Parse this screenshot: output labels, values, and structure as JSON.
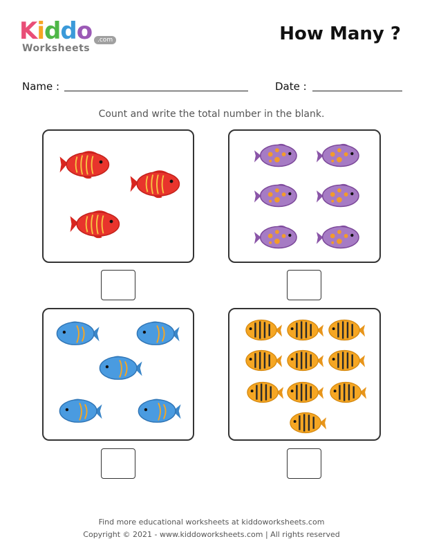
{
  "logo": {
    "letters": [
      "K",
      "i",
      "d",
      "d",
      "o"
    ],
    "worksheets": "Worksheets",
    "com": ".com"
  },
  "title": "How Many ?",
  "fields": {
    "name_label": "Name :",
    "date_label": "Date :"
  },
  "instruction": "Count and write the total number in the blank.",
  "panels": [
    {
      "fish_kind": "red-fish-icon",
      "color": "#e8342c"
    },
    {
      "fish_kind": "purple-fish-icon",
      "color": "#9b6bb5"
    },
    {
      "fish_kind": "blue-fish-icon",
      "color": "#3e8fd6"
    },
    {
      "fish_kind": "orange-striped-fish-icon",
      "color": "#f5a623"
    }
  ],
  "footer": {
    "line1": "Find more educational worksheets at kiddoworksheets.com",
    "line2": "Copyright © 2021 - www.kiddoworksheets.com  |  All rights reserved"
  }
}
